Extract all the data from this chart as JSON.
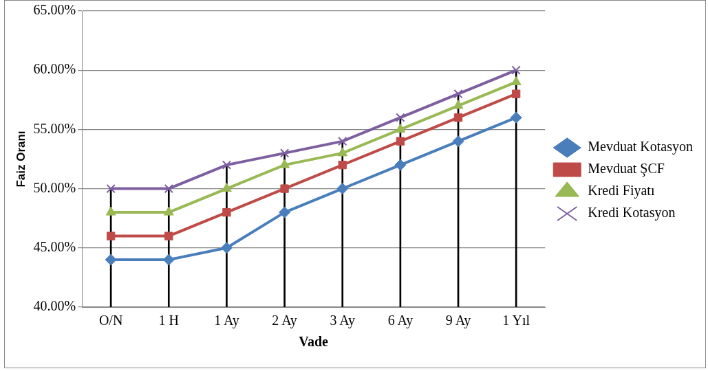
{
  "chart_data": {
    "type": "line",
    "xlabel": "Vade",
    "ylabel": "Faiz Oranı",
    "categories": [
      "O/N",
      "1 H",
      "1 Ay",
      "2 Ay",
      "3 Ay",
      "6 Ay",
      "9 Ay",
      "1 Yıl"
    ],
    "series": [
      {
        "type": "bar",
        "color": "#000000",
        "values": [
          50,
          50,
          52,
          53,
          54,
          56,
          58,
          60
        ]
      },
      {
        "name": "Mevduat Kotasyon",
        "color": "#4a7ebb",
        "marker": "diamond",
        "values": [
          44,
          44,
          45,
          48,
          50,
          52,
          54,
          56
        ]
      },
      {
        "name": "Mevduat ŞCF",
        "color": "#be4b48",
        "marker": "square",
        "values": [
          46,
          46,
          48,
          50,
          52,
          54,
          56,
          58
        ]
      },
      {
        "name": "Kredi Fiyatı",
        "color": "#98b954",
        "marker": "triangle",
        "values": [
          48,
          48,
          50,
          52,
          53,
          55,
          57,
          59
        ]
      },
      {
        "name": "Kredi Kotasyon",
        "color": "#7d5fa0",
        "marker": "cross",
        "values": [
          50,
          50,
          52,
          53,
          54,
          56,
          58,
          60
        ]
      }
    ],
    "ylim": [
      40,
      65
    ],
    "yticks": [
      {
        "value": 40,
        "label": "40.00%"
      },
      {
        "value": 45,
        "label": "45.00%"
      },
      {
        "value": 50,
        "label": "50.00%"
      },
      {
        "value": 55,
        "label": "55.00%"
      },
      {
        "value": 60,
        "label": "60.00%"
      },
      {
        "value": 65,
        "label": "65.00%"
      }
    ],
    "grid": "y",
    "legend": "right",
    "line_style": "solid"
  }
}
